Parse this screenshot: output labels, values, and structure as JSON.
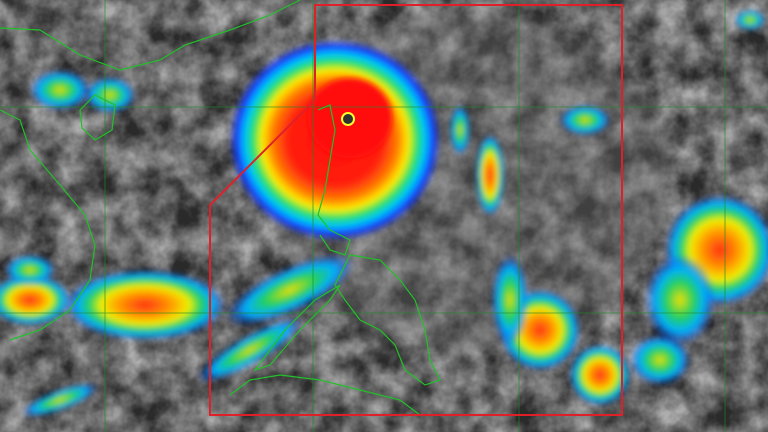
{
  "image": {
    "kind": "infrared satellite imagery",
    "colors": {
      "background_cloud": "#3a3a3a",
      "grid": "#1f8a2a",
      "coastline": "#22c02a",
      "boundary": "#e02028",
      "enhancement_scale": [
        "#1030ff",
        "#00c8ff",
        "#20e060",
        "#fff000",
        "#ff8000",
        "#ff1010"
      ]
    }
  }
}
